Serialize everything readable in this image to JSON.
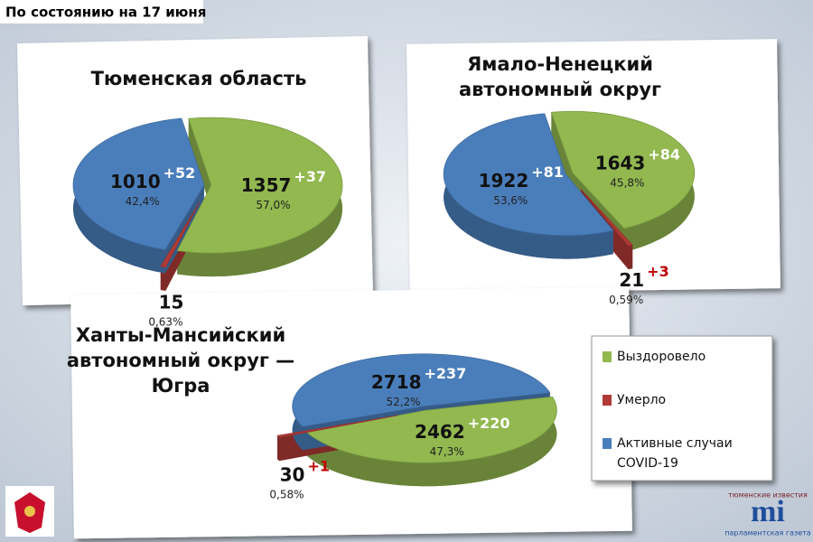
{
  "header": {
    "date": "По состоянию на 17 июня"
  },
  "legend": [
    {
      "label": [
        "Выздоровело"
      ],
      "color": "#92b84f"
    },
    {
      "label": [
        "Умерло"
      ],
      "color": "#b03a36"
    },
    {
      "label": [
        "Активные случаи",
        "COVID-19"
      ],
      "color": "#4a7ebb"
    }
  ],
  "logo": {
    "top": "тюменские известия",
    "mark": "mi",
    "bottom": "парламентская газета"
  },
  "chart_data": [
    {
      "type": "pie",
      "title": [
        "Тюменская область"
      ],
      "values": [
        1357,
        15,
        1010
      ],
      "colors": [
        "#92b84f",
        "#b03a36",
        "#4a7ebb"
      ],
      "shares": [
        57.0,
        0.63,
        42.4
      ],
      "share_labels": [
        "57,0%",
        "0,63%",
        "42,4%"
      ],
      "changes": [
        37,
        null,
        52
      ],
      "change_labels": [
        "+37",
        null,
        "+52"
      ]
    },
    {
      "type": "pie",
      "title": [
        "Ямало-Ненецкий",
        "автономный округ"
      ],
      "values": [
        1643,
        21,
        1922
      ],
      "colors": [
        "#92b84f",
        "#b03a36",
        "#4a7ebb"
      ],
      "shares": [
        45.8,
        0.59,
        53.6
      ],
      "share_labels": [
        "45,8%",
        "0,59%",
        "53,6%"
      ],
      "changes": [
        84,
        3,
        81
      ],
      "change_labels": [
        "+84",
        "+3",
        "+81"
      ]
    },
    {
      "type": "pie",
      "title": [
        "Ханты-Мансийский",
        "автономный округ —",
        "Югра"
      ],
      "values": [
        2462,
        30,
        2718
      ],
      "colors": [
        "#92b84f",
        "#b03a36",
        "#4a7ebb"
      ],
      "shares": [
        47.3,
        0.58,
        52.2
      ],
      "share_labels": [
        "47,3%",
        "0,58%",
        "52,2%"
      ],
      "changes": [
        220,
        1,
        237
      ],
      "change_labels": [
        "+220",
        "+1",
        "+237"
      ]
    }
  ]
}
